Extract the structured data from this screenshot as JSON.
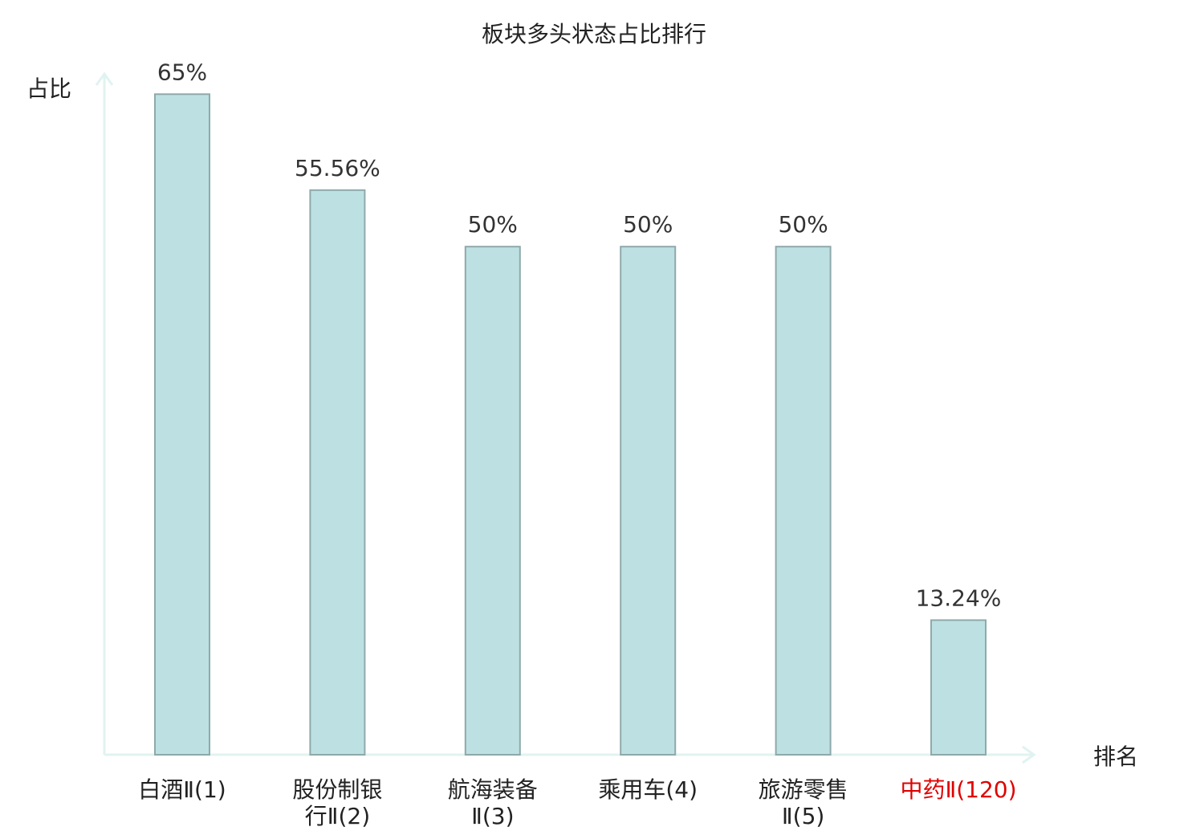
{
  "chart_data": {
    "type": "bar",
    "title": "板块多头状态占比排行",
    "ylabel": "占比",
    "xlabel": "排名",
    "ylim": [
      0,
      67
    ],
    "grid": false,
    "categories": [
      {
        "lines": [
          "白酒Ⅱ(1)"
        ],
        "highlight": false
      },
      {
        "lines": [
          "股份制银",
          "行Ⅱ(2)"
        ],
        "highlight": false
      },
      {
        "lines": [
          "航海装备",
          "Ⅱ(3)"
        ],
        "highlight": false
      },
      {
        "lines": [
          "乘用车(4)"
        ],
        "highlight": false
      },
      {
        "lines": [
          "旅游零售",
          "Ⅱ(5)"
        ],
        "highlight": false
      },
      {
        "lines": [
          "中药Ⅱ(120)"
        ],
        "highlight": true
      }
    ],
    "values": [
      65,
      55.56,
      50,
      50,
      50,
      13.24
    ],
    "value_labels": [
      "65%",
      "55.56%",
      "50%",
      "50%",
      "50%",
      "13.24%"
    ],
    "colors": {
      "bar_fill": "#bde1e3",
      "bar_stroke": "#8fa9aa",
      "axis": "#e0f3f1",
      "text": "#222222",
      "value_text": "#333333",
      "highlight": "#e00000"
    }
  }
}
